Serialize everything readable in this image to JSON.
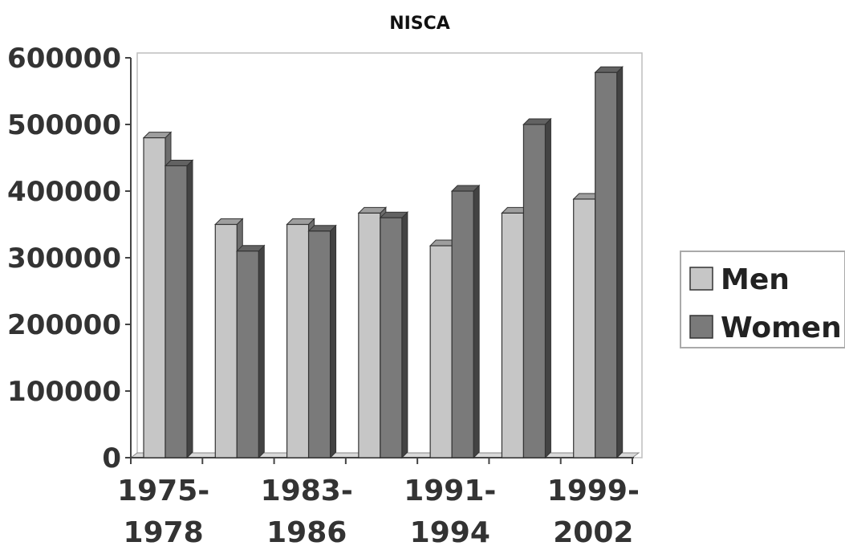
{
  "chart_data": {
    "type": "bar",
    "title": "NISCA",
    "xlabel": "",
    "ylabel": "",
    "ylim": [
      0,
      600000
    ],
    "yticks": [
      0,
      100000,
      200000,
      300000,
      400000,
      500000,
      600000
    ],
    "categories": [
      "1975-1978",
      "",
      "1983-1986",
      "",
      "1991-1994",
      "",
      "1999-2002"
    ],
    "category_label_lines": [
      [
        "1975-",
        "1978"
      ],
      [],
      [
        "1983-",
        "1986"
      ],
      [],
      [
        "1991-",
        "1994"
      ],
      [],
      [
        "1999-",
        "2002"
      ]
    ],
    "series": [
      {
        "name": "Men",
        "values": [
          480000,
          350000,
          350000,
          367000,
          318000,
          367000,
          388000
        ]
      },
      {
        "name": "Women",
        "values": [
          438000,
          310000,
          340000,
          360000,
          400000,
          500000,
          578000
        ]
      }
    ],
    "grid": false,
    "legend_position": "right",
    "colors": {
      "Men": "#c6c6c6",
      "Women": "#7a7a7a"
    }
  }
}
